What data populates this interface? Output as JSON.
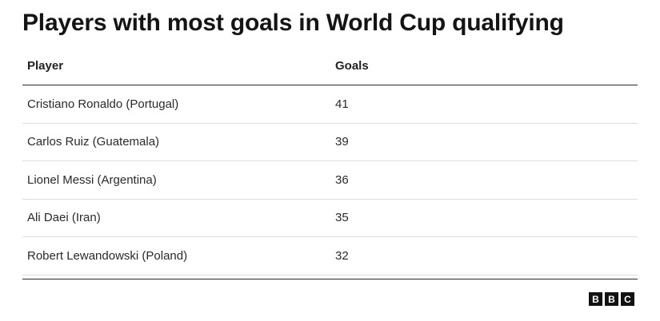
{
  "title": "Players with most goals in World Cup qualifying",
  "table": {
    "headers": {
      "player": "Player",
      "goals": "Goals"
    },
    "rows": [
      {
        "player": "Cristiano Ronaldo (Portugal)",
        "goals": "41"
      },
      {
        "player": "Carlos Ruiz (Guatemala)",
        "goals": "39"
      },
      {
        "player": "Lionel Messi (Argentina)",
        "goals": "36"
      },
      {
        "player": "Ali Daei (Iran)",
        "goals": "35"
      },
      {
        "player": "Robert Lewandowski (Poland)",
        "goals": "32"
      }
    ]
  },
  "logo": {
    "letters": [
      "B",
      "B",
      "C"
    ]
  }
}
